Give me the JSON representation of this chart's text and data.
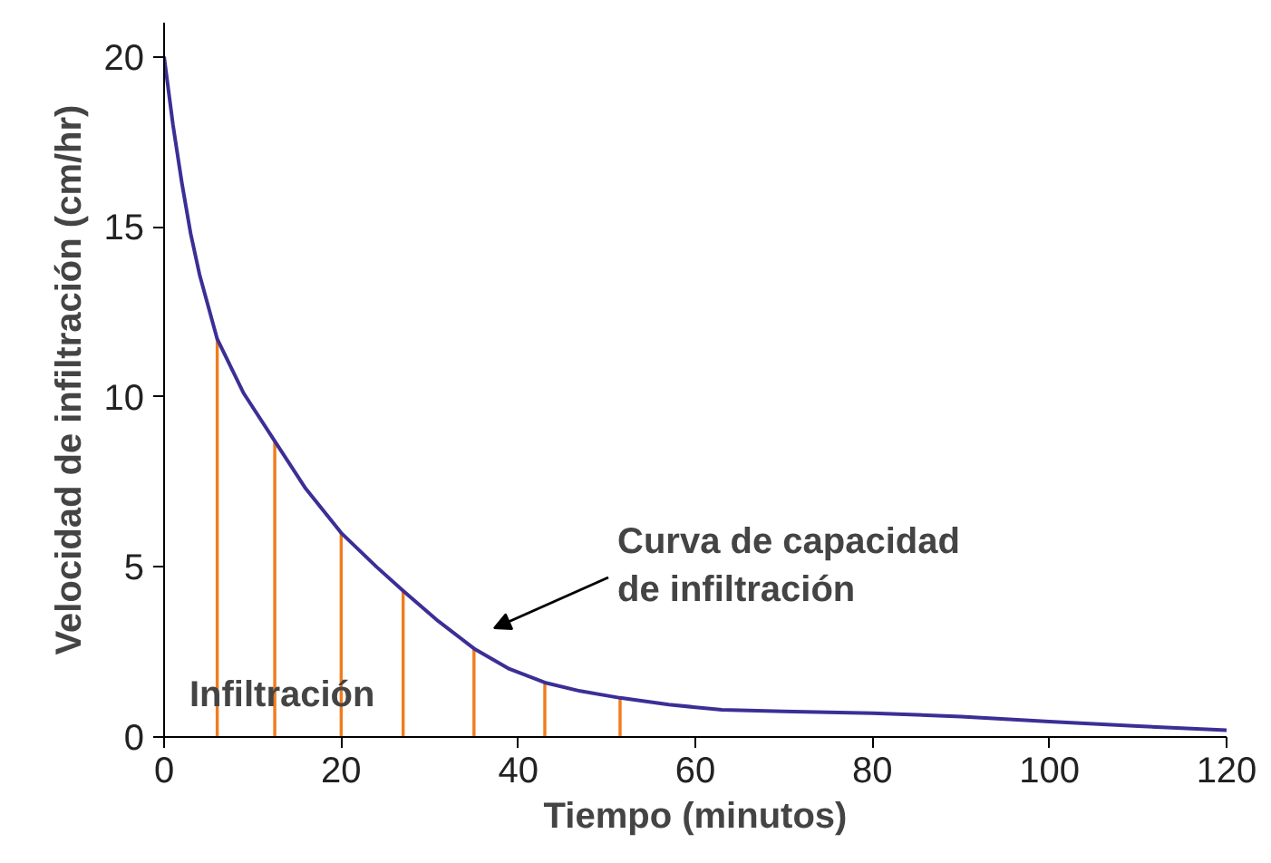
{
  "chart_data": {
    "type": "line",
    "xlabel": "Tiempo (minutos)",
    "ylabel": "Velocidad de infiltración (cm/hr)",
    "xlim": [
      0,
      120
    ],
    "ylim": [
      0,
      21
    ],
    "xticks": [
      0,
      20,
      40,
      60,
      80,
      100,
      120
    ],
    "yticks": [
      0,
      5,
      10,
      15,
      20
    ],
    "grid": false,
    "series": [
      {
        "color": "#3b2f96",
        "x": [
          0,
          1,
          2,
          3,
          4,
          6,
          9,
          12.5,
          16,
          20,
          24,
          27,
          31,
          35,
          39,
          43,
          47,
          51.5,
          57,
          63,
          70,
          80,
          90,
          100,
          110,
          120
        ],
        "values": [
          20,
          18,
          16.3,
          14.8,
          13.6,
          11.7,
          10.1,
          8.7,
          7.3,
          6.0,
          5.0,
          4.3,
          3.4,
          2.6,
          2.0,
          1.6,
          1.35,
          1.15,
          0.95,
          0.8,
          0.75,
          0.7,
          0.6,
          0.45,
          0.32,
          0.2
        ]
      },
      {
        "type": "bar",
        "color": "#f07c1e",
        "x": [
          6,
          12.5,
          20,
          27,
          35,
          43,
          51.5
        ],
        "values": [
          11.7,
          8.7,
          6.0,
          4.3,
          2.6,
          1.6,
          1.15
        ]
      }
    ],
    "annotations": [
      "Infiltración",
      "Curva de capacidad\nde infiltración"
    ]
  }
}
